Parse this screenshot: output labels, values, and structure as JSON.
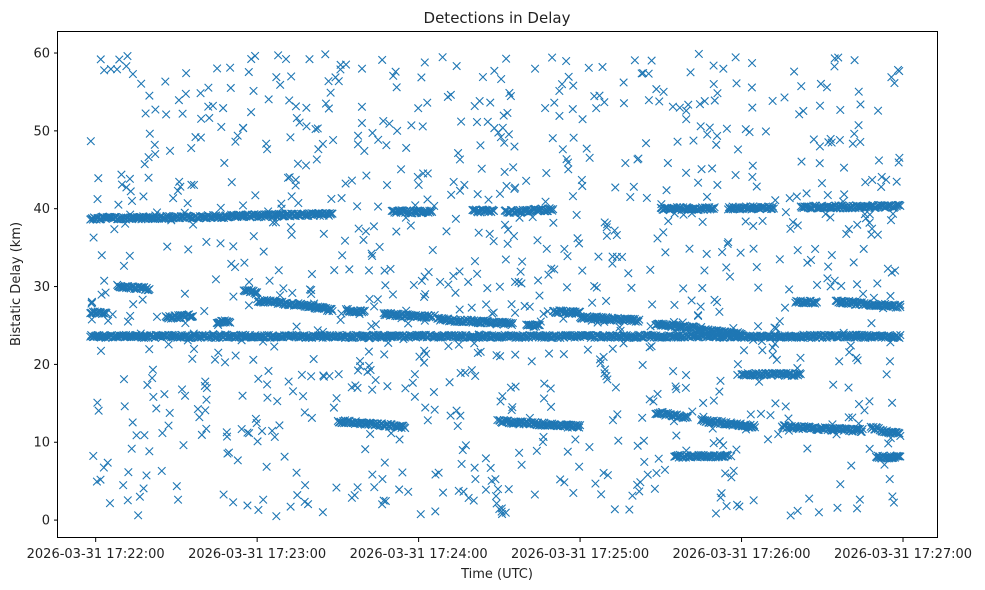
{
  "chart_data": {
    "type": "scatter",
    "title": "Detections in Delay",
    "xlabel": "Time (UTC)",
    "ylabel": "Bistatic Delay (km)",
    "x_ticks": [
      "2026-03-31 17:22:00",
      "2026-03-31 17:23:00",
      "2026-03-31 17:24:00",
      "2026-03-31 17:25:00",
      "2026-03-31 17:26:00",
      "2026-03-31 17:27:00"
    ],
    "y_ticks": [
      "0",
      "10",
      "20",
      "30",
      "40",
      "50",
      "60"
    ],
    "xlim": [
      "2026-03-31 17:21:46",
      "2026-03-31 17:27:13"
    ],
    "ylim": [
      -2.3,
      62.7
    ],
    "marker": "x",
    "color": "#1f77b4",
    "grid": false,
    "legend": "none",
    "tracks": [
      {
        "t": [
          [
            "2026-03-31 17:21:58",
            23.6
          ],
          [
            "2026-03-31 17:26:59",
            23.6
          ]
        ]
      },
      {
        "t": [
          [
            "2026-03-31 17:21:58",
            38.8
          ],
          [
            "2026-03-31 17:22:15",
            38.8
          ],
          [
            "2026-03-31 17:23:15",
            39.2
          ],
          [
            "2026-03-31 17:23:28",
            39.3
          ]
        ]
      },
      {
        "t": [
          [
            "2026-03-31 17:23:50",
            39.6
          ],
          [
            "2026-03-31 17:24:05",
            39.6
          ]
        ]
      },
      {
        "t": [
          [
            "2026-03-31 17:24:20",
            39.7
          ],
          [
            "2026-03-31 17:24:28",
            39.7
          ]
        ]
      },
      {
        "t": [
          [
            "2026-03-31 17:24:32",
            39.6
          ],
          [
            "2026-03-31 17:24:50",
            39.9
          ]
        ]
      },
      {
        "t": [
          [
            "2026-03-31 17:25:30",
            40.0
          ],
          [
            "2026-03-31 17:25:50",
            40.0
          ]
        ]
      },
      {
        "t": [
          [
            "2026-03-31 17:25:55",
            40.1
          ],
          [
            "2026-03-31 17:26:12",
            40.1
          ]
        ]
      },
      {
        "t": [
          [
            "2026-03-31 17:26:22",
            40.2
          ],
          [
            "2026-03-31 17:26:59",
            40.3
          ]
        ]
      },
      {
        "t": [
          [
            "2026-03-31 17:21:58",
            26.7
          ],
          [
            "2026-03-31 17:22:04",
            26.5
          ]
        ]
      },
      {
        "t": [
          [
            "2026-03-31 17:22:08",
            30.1
          ],
          [
            "2026-03-31 17:22:20",
            29.7
          ]
        ]
      },
      {
        "t": [
          [
            "2026-03-31 17:22:26",
            26.0
          ],
          [
            "2026-03-31 17:22:36",
            26.3
          ]
        ]
      },
      {
        "t": [
          [
            "2026-03-31 17:22:45",
            25.5
          ],
          [
            "2026-03-31 17:22:50",
            25.5
          ]
        ]
      },
      {
        "t": [
          [
            "2026-03-31 17:22:55",
            29.5
          ],
          [
            "2026-03-31 17:23:00",
            29.3
          ]
        ]
      },
      {
        "t": [
          [
            "2026-03-31 17:23:00",
            28.2
          ],
          [
            "2026-03-31 17:23:20",
            27.5
          ],
          [
            "2026-03-31 17:23:28",
            26.9
          ]
        ]
      },
      {
        "t": [
          [
            "2026-03-31 17:23:33",
            27.0
          ],
          [
            "2026-03-31 17:23:40",
            26.7
          ]
        ]
      },
      {
        "t": [
          [
            "2026-03-31 17:23:47",
            26.5
          ],
          [
            "2026-03-31 17:24:05",
            26.1
          ]
        ]
      },
      {
        "t": [
          [
            "2026-03-31 17:24:07",
            25.8
          ],
          [
            "2026-03-31 17:24:35",
            25.2
          ]
        ]
      },
      {
        "t": [
          [
            "2026-03-31 17:24:40",
            25.0
          ],
          [
            "2026-03-31 17:24:45",
            25.0
          ]
        ]
      },
      {
        "t": [
          [
            "2026-03-31 17:24:50",
            26.8
          ],
          [
            "2026-03-31 17:25:00",
            26.6
          ]
        ]
      },
      {
        "t": [
          [
            "2026-03-31 17:25:00",
            26.1
          ],
          [
            "2026-03-31 17:25:22",
            25.6
          ]
        ]
      },
      {
        "t": [
          [
            "2026-03-31 17:25:28",
            25.2
          ],
          [
            "2026-03-31 17:25:45",
            24.6
          ]
        ]
      },
      {
        "t": [
          [
            "2026-03-31 17:25:45",
            24.4
          ],
          [
            "2026-03-31 17:26:00",
            23.9
          ]
        ]
      },
      {
        "t": [
          [
            "2026-03-31 17:26:20",
            28.0
          ],
          [
            "2026-03-31 17:26:28",
            28.0
          ]
        ]
      },
      {
        "t": [
          [
            "2026-03-31 17:26:35",
            28.1
          ],
          [
            "2026-03-31 17:26:59",
            27.4
          ]
        ]
      },
      {
        "t": [
          [
            "2026-03-31 17:23:30",
            12.7
          ],
          [
            "2026-03-31 17:23:55",
            12.0
          ]
        ]
      },
      {
        "t": [
          [
            "2026-03-31 17:24:30",
            12.7
          ],
          [
            "2026-03-31 17:25:00",
            12.0
          ]
        ]
      },
      {
        "t": [
          [
            "2026-03-31 17:25:28",
            13.8
          ],
          [
            "2026-03-31 17:25:40",
            13.2
          ]
        ]
      },
      {
        "t": [
          [
            "2026-03-31 17:25:35",
            8.2
          ],
          [
            "2026-03-31 17:25:55",
            8.2
          ]
        ]
      },
      {
        "t": [
          [
            "2026-03-31 17:25:45",
            12.8
          ],
          [
            "2026-03-31 17:26:05",
            12.0
          ]
        ]
      },
      {
        "t": [
          [
            "2026-03-31 17:26:00",
            18.7
          ],
          [
            "2026-03-31 17:26:22",
            18.7
          ]
        ]
      },
      {
        "t": [
          [
            "2026-03-31 17:26:15",
            12.0
          ],
          [
            "2026-03-31 17:26:45",
            11.5
          ]
        ]
      },
      {
        "t": [
          [
            "2026-03-31 17:26:48",
            11.9
          ],
          [
            "2026-03-31 17:26:59",
            11.0
          ]
        ]
      },
      {
        "t": [
          [
            "2026-03-31 17:26:50",
            8.1
          ],
          [
            "2026-03-31 17:26:59",
            8.1
          ]
        ]
      }
    ],
    "scattered_detections": "approximately 1000 uniformly distributed detections between 0 and 60 km over the full time range"
  }
}
